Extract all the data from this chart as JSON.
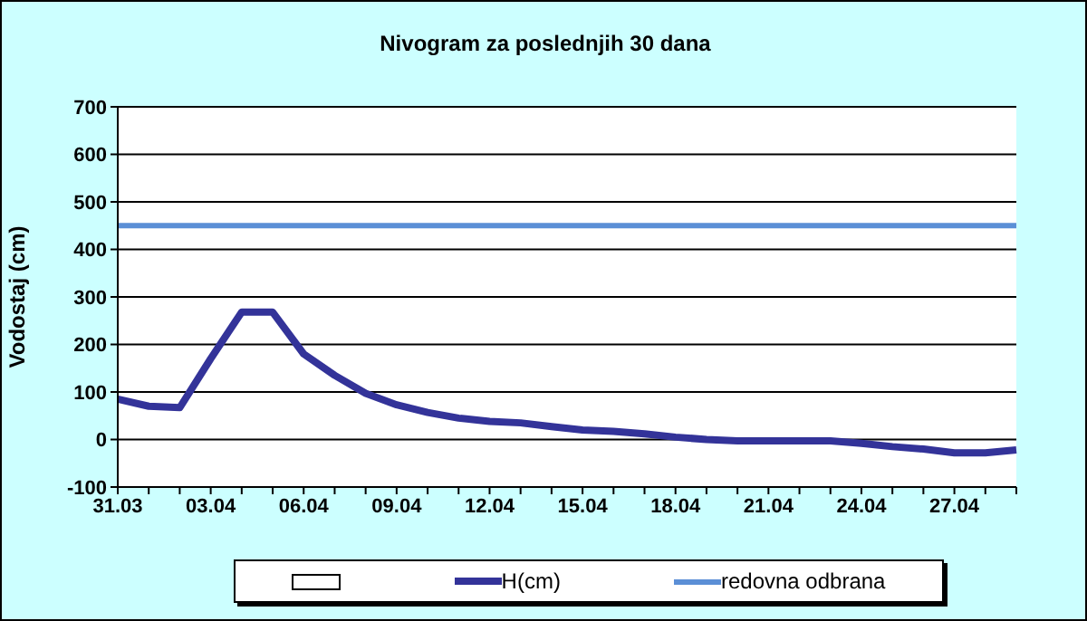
{
  "chart_data": {
    "type": "line",
    "title": "Nivogram za poslednjih 30 dana",
    "ylabel": "Vodostaj (cm)",
    "categories": [
      "31.03",
      null,
      null,
      "03.04",
      null,
      null,
      "06.04",
      null,
      null,
      "09.04",
      null,
      null,
      "12.04",
      null,
      null,
      "15.04",
      null,
      null,
      "18.04",
      null,
      null,
      "21.04",
      null,
      null,
      "24.04",
      null,
      null,
      "27.04",
      null,
      null
    ],
    "series": [
      {
        "name": "H(cm)",
        "color": "#333399",
        "values": [
          85,
          70,
          67,
          170,
          268,
          268,
          180,
          135,
          97,
          73,
          57,
          45,
          38,
          35,
          27,
          20,
          17,
          12,
          5,
          0,
          -3,
          -3,
          -3,
          -3,
          -8,
          -15,
          -20,
          -28,
          -28,
          -22
        ]
      },
      {
        "name": "redovna odbrana",
        "color": "#5b8fd6",
        "values": [
          450,
          450,
          450,
          450,
          450,
          450,
          450,
          450,
          450,
          450,
          450,
          450,
          450,
          450,
          450,
          450,
          450,
          450,
          450,
          450,
          450,
          450,
          450,
          450,
          450,
          450,
          450,
          450,
          450,
          450
        ]
      }
    ],
    "ylim": [
      -100,
      700
    ],
    "yticks": [
      -100,
      0,
      100,
      200,
      300,
      400,
      500,
      600,
      700
    ],
    "grid": "y",
    "legend": "bottom",
    "marker": "none",
    "line_style": "solid"
  }
}
